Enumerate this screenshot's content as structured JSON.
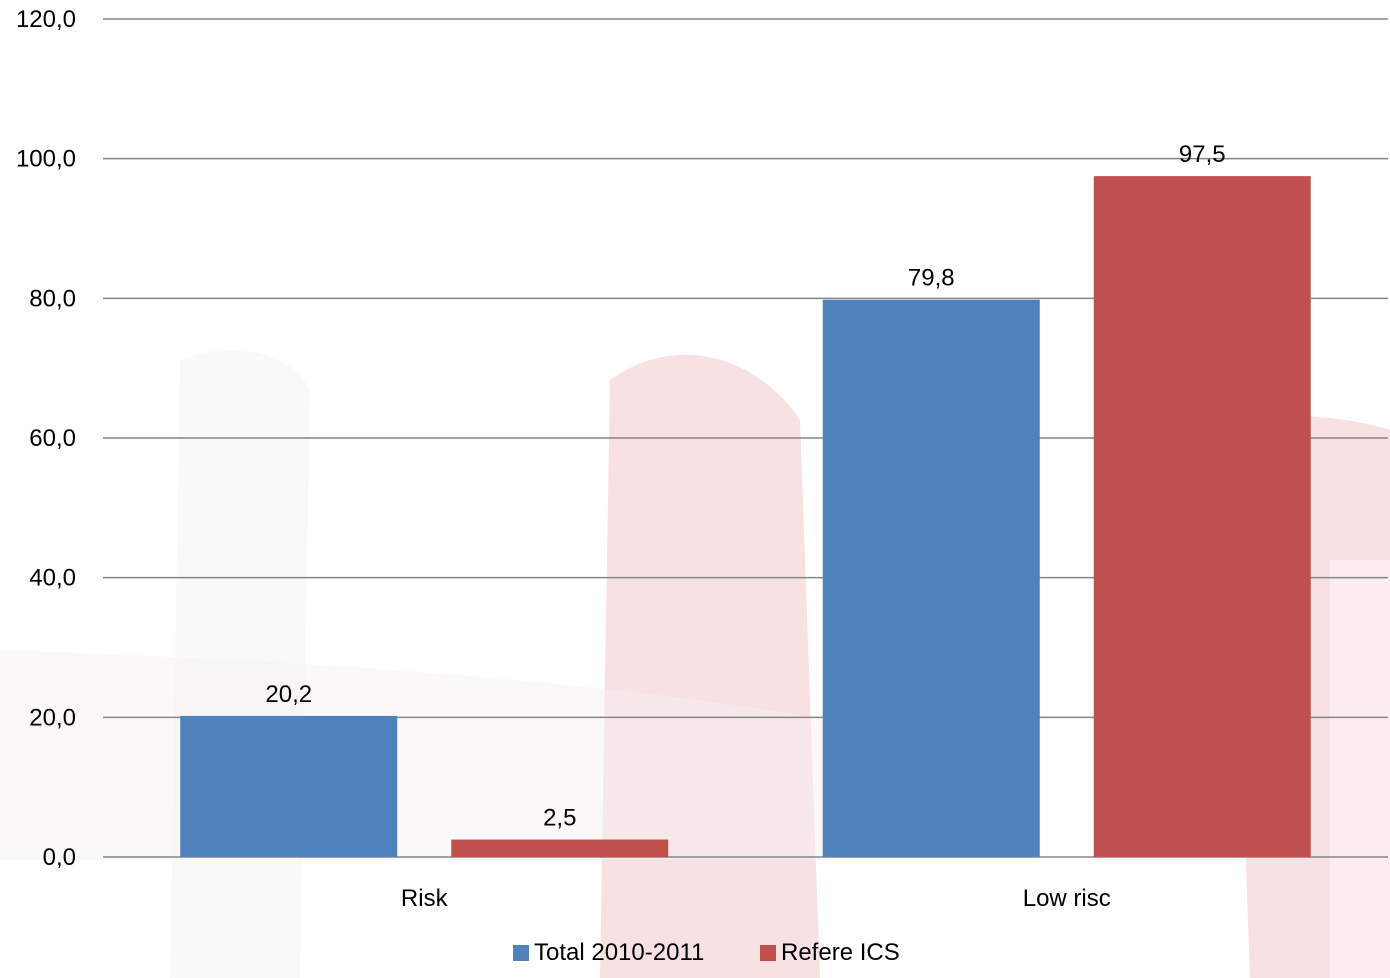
{
  "chart_data": {
    "type": "bar",
    "title": "",
    "xlabel": "",
    "ylabel": "",
    "categories": [
      "Risk",
      "Low risc"
    ],
    "series": [
      {
        "name": "Total 2010-2011",
        "color": "#4f81bd",
        "values": [
          20.2,
          79.8
        ]
      },
      {
        "name": "Refere ICS",
        "color": "#c0504d",
        "values": [
          2.5,
          97.5
        ]
      }
    ],
    "data_labels": [
      [
        "20,2",
        "79,8"
      ],
      [
        "2,5",
        "97,5"
      ]
    ],
    "ylim": [
      0,
      120
    ],
    "yticks": [
      0,
      20,
      40,
      60,
      80,
      100,
      120
    ],
    "ytick_labels": [
      "0,0",
      "20,0",
      "40,0",
      "60,0",
      "80,0",
      "100,0",
      "120,0"
    ],
    "grid": true,
    "legend_position": "bottom"
  }
}
